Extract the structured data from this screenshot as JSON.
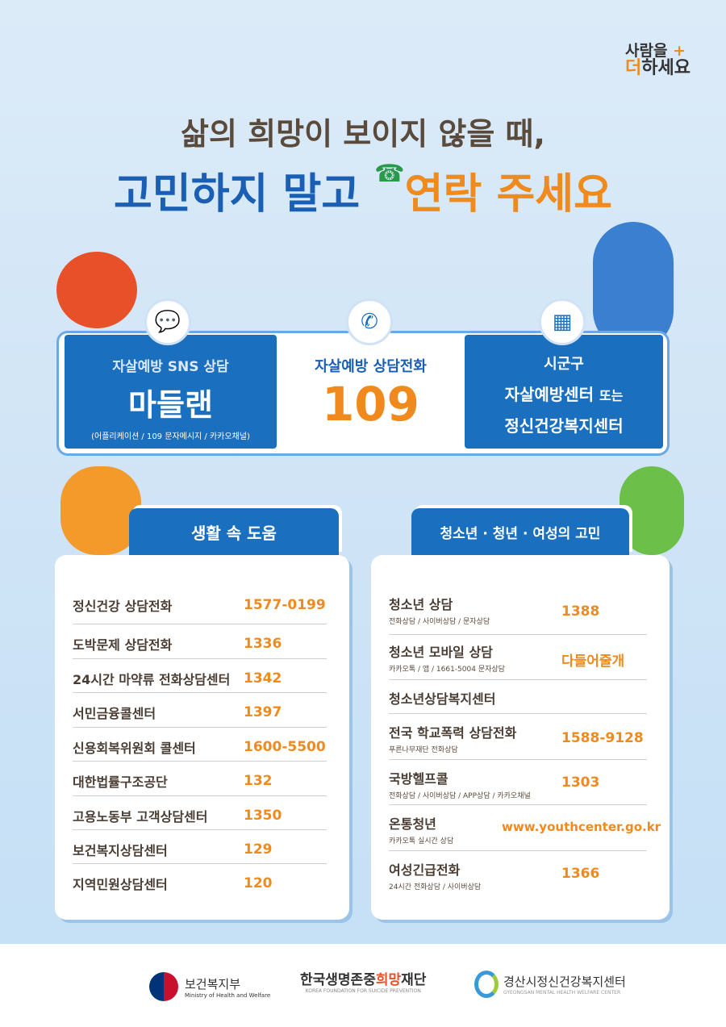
{
  "slogan": {
    "line1": "사람을",
    "plus": "+",
    "line2a": "더",
    "line2b": "하세요"
  },
  "headline": {
    "line1": "삶의 희망이 보이지 않을 때,",
    "line2a": "고민하지 말고",
    "line2b": "연락 주세요"
  },
  "hotlines": {
    "sns": {
      "title": "자살예방 SNS 상담",
      "name": "마들랜",
      "note": "(어플리케이션 / 109 문자메시지 / 카카오채널)",
      "icon": "chat-bubbles-icon"
    },
    "phone": {
      "title": "자살예방 상담전화",
      "number": "109",
      "icon": "phone-icon"
    },
    "center": {
      "line1": "시군구",
      "line2": "자살예방센터",
      "or": "또는",
      "line3": "정신건강복지센터",
      "icon": "building-icon"
    }
  },
  "life": {
    "title": "생활 속 도움",
    "items": [
      {
        "name": "정신건강 상담전화",
        "number": "1577-0199"
      },
      {
        "name": "도박문제 상담전화",
        "number": "1336"
      },
      {
        "name": "24시간 마약류 전화상담센터",
        "number": "1342"
      },
      {
        "name": "서민금융콜센터",
        "number": "1397"
      },
      {
        "name": "신용회복위원회 콜센터",
        "number": "1600-5500"
      },
      {
        "name": "대한법률구조공단",
        "number": "132"
      },
      {
        "name": "고용노동부 고객상담센터",
        "number": "1350"
      },
      {
        "name": "보건복지상담센터",
        "number": "129"
      },
      {
        "name": "지역민원상담센터",
        "number": "120"
      }
    ]
  },
  "youth": {
    "title": "청소년 · 청년 · 여성의 고민",
    "items": [
      {
        "name": "청소년 상담",
        "sub": "전화상담 / 사이버상담 / 문자상담",
        "number": "1388"
      },
      {
        "name": "청소년 모바일 상담",
        "sub": "카카오톡 / 앱 / 1661-5004 문자상담",
        "number": "다들어줄개"
      },
      {
        "name": "청소년상담복지센터",
        "sub": "",
        "number": ""
      },
      {
        "name": "전국 학교폭력 상담전화",
        "sub": "푸른나무재단 전화상담",
        "number": "1588-9128"
      },
      {
        "name": "국방헬프콜",
        "sub": "전화상담 / 사이버상담 / APP상담 / 카카오채널",
        "number": "1303"
      },
      {
        "name": "온통청년",
        "sub": "카카오톡 실시간 상담",
        "number": "www.youthcenter.go.kr"
      },
      {
        "name": "여성긴급전화",
        "sub": "24시간 전화상담 / 사이버상담",
        "number": "1366"
      }
    ]
  },
  "footer": {
    "mohw": {
      "name": "보건복지부",
      "en": "Ministry of Health and Welfare"
    },
    "kfsp": {
      "name_a": "한국생명존중",
      "name_b": "희망",
      "name_c": "재단",
      "en": "KOREA FOUNDATION FOR SUICIDE PREVENTION"
    },
    "gmhwc": {
      "name": "경산시정신건강복지센터",
      "en": "GYEONGSAN MENTAL HEALTH WELFARE CENTER"
    }
  },
  "colors": {
    "primary": "#1a6fbf",
    "accent": "#f08a1c",
    "text": "#4a3d33"
  }
}
